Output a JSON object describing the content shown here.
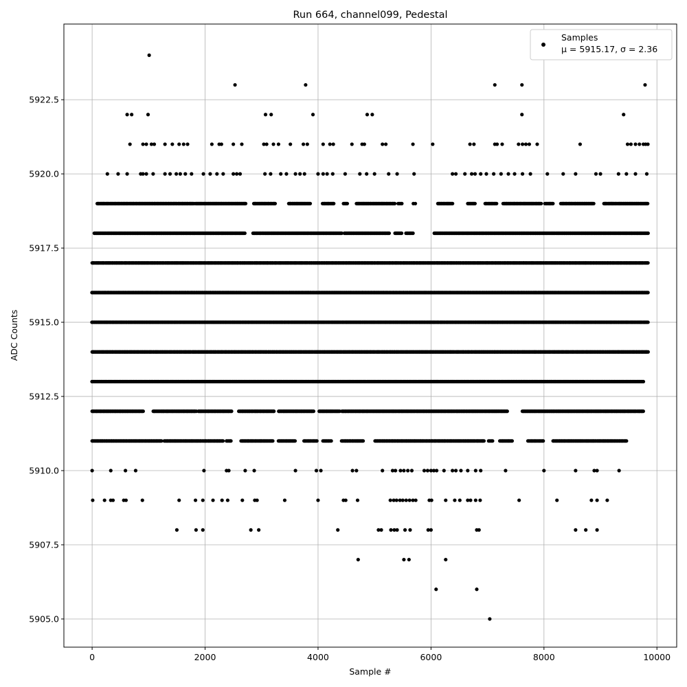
{
  "chart_data": {
    "type": "scatter",
    "title": "Run 664, channel099, Pedestal",
    "xlabel": "Sample #",
    "ylabel": "ADC Counts",
    "xlim": [
      -500,
      10350
    ],
    "ylim": [
      5904.05,
      5925.05
    ],
    "xticks": [
      0,
      2000,
      4000,
      6000,
      8000,
      10000
    ],
    "xtick_labels": [
      "0",
      "2000",
      "4000",
      "6000",
      "8000",
      "10000"
    ],
    "yticks": [
      5905.0,
      5907.5,
      5910.0,
      5912.5,
      5915.0,
      5917.5,
      5920.0,
      5922.5
    ],
    "ytick_labels": [
      "5905.0",
      "5907.5",
      "5910.0",
      "5912.5",
      "5915.0",
      "5917.5",
      "5920.0",
      "5922.5"
    ],
    "grid": true,
    "legend_position": "top-right",
    "series": [
      {
        "name": "Samples",
        "legend_label": "μ = 5915.17, σ = 2.36",
        "color": "#000000",
        "sample_count": 9830,
        "points": [
          [
            1010,
            5924
          ],
          [
            2530,
            5923
          ],
          [
            3780,
            5923
          ],
          [
            7130,
            5923
          ],
          [
            7610,
            5923
          ],
          [
            9790,
            5923
          ],
          [
            620,
            5922
          ],
          [
            700,
            5922
          ],
          [
            990,
            5922
          ],
          [
            3070,
            5922
          ],
          [
            3170,
            5922
          ],
          [
            3910,
            5922
          ],
          [
            4870,
            5922
          ],
          [
            4960,
            5922
          ],
          [
            7610,
            5922
          ],
          [
            9410,
            5922
          ],
          [
            7040,
            5905
          ],
          [
            6090,
            5906
          ],
          [
            6810,
            5906
          ],
          [
            4710,
            5907
          ],
          [
            5520,
            5907
          ],
          [
            5610,
            5907
          ],
          [
            6260,
            5907
          ],
          [
            1500,
            5908
          ],
          [
            1840,
            5908
          ],
          [
            1960,
            5908
          ],
          [
            2810,
            5908
          ],
          [
            2950,
            5908
          ],
          [
            4350,
            5908
          ],
          [
            5070,
            5908
          ],
          [
            5120,
            5908
          ],
          [
            5290,
            5908
          ],
          [
            5350,
            5908
          ],
          [
            5400,
            5908
          ],
          [
            5540,
            5908
          ],
          [
            5630,
            5908
          ],
          [
            5950,
            5908
          ],
          [
            6000,
            5908
          ],
          [
            6810,
            5908
          ],
          [
            6850,
            5908
          ],
          [
            8560,
            5908
          ],
          [
            8740,
            5908
          ],
          [
            8940,
            5908
          ],
          [
            10,
            5909
          ],
          [
            220,
            5909
          ],
          [
            330,
            5909
          ],
          [
            370,
            5909
          ],
          [
            560,
            5909
          ],
          [
            600,
            5909
          ],
          [
            890,
            5909
          ],
          [
            1540,
            5909
          ],
          [
            1830,
            5909
          ],
          [
            1960,
            5909
          ],
          [
            2140,
            5909
          ],
          [
            2300,
            5909
          ],
          [
            2400,
            5909
          ],
          [
            2660,
            5909
          ],
          [
            2880,
            5909
          ],
          [
            2920,
            5909
          ],
          [
            3410,
            5909
          ],
          [
            4000,
            5909
          ],
          [
            4450,
            5909
          ],
          [
            4490,
            5909
          ],
          [
            4700,
            5909
          ],
          [
            5280,
            5909
          ],
          [
            5340,
            5909
          ],
          [
            5390,
            5909
          ],
          [
            5450,
            5909
          ],
          [
            5500,
            5909
          ],
          [
            5560,
            5909
          ],
          [
            5620,
            5909
          ],
          [
            5680,
            5909
          ],
          [
            5730,
            5909
          ],
          [
            5970,
            5909
          ],
          [
            6010,
            5909
          ],
          [
            6260,
            5909
          ],
          [
            6420,
            5909
          ],
          [
            6510,
            5909
          ],
          [
            6650,
            5909
          ],
          [
            6700,
            5909
          ],
          [
            6790,
            5909
          ],
          [
            6870,
            5909
          ],
          [
            7560,
            5909
          ],
          [
            8230,
            5909
          ],
          [
            8840,
            5909
          ],
          [
            8940,
            5909
          ],
          [
            9120,
            5909
          ],
          [
            0,
            5910
          ],
          [
            330,
            5910
          ],
          [
            590,
            5910
          ],
          [
            770,
            5910
          ],
          [
            1980,
            5910
          ],
          [
            2380,
            5910
          ],
          [
            2420,
            5910
          ],
          [
            2710,
            5910
          ],
          [
            2870,
            5910
          ],
          [
            3600,
            5910
          ],
          [
            3970,
            5910
          ],
          [
            4050,
            5910
          ],
          [
            4610,
            5910
          ],
          [
            4680,
            5910
          ],
          [
            5140,
            5910
          ],
          [
            5320,
            5910
          ],
          [
            5370,
            5910
          ],
          [
            5460,
            5910
          ],
          [
            5520,
            5910
          ],
          [
            5590,
            5910
          ],
          [
            5660,
            5910
          ],
          [
            5880,
            5910
          ],
          [
            5940,
            5910
          ],
          [
            6000,
            5910
          ],
          [
            6050,
            5910
          ],
          [
            6100,
            5910
          ],
          [
            6230,
            5910
          ],
          [
            6380,
            5910
          ],
          [
            6440,
            5910
          ],
          [
            6530,
            5910
          ],
          [
            6650,
            5910
          ],
          [
            6790,
            5910
          ],
          [
            6880,
            5910
          ],
          [
            7320,
            5910
          ],
          [
            8000,
            5910
          ],
          [
            8560,
            5910
          ],
          [
            8890,
            5910
          ],
          [
            8940,
            5910
          ],
          [
            9330,
            5910
          ],
          [
            670,
            5921
          ],
          [
            900,
            5921
          ],
          [
            960,
            5921
          ],
          [
            1050,
            5921
          ],
          [
            1100,
            5921
          ],
          [
            1290,
            5921
          ],
          [
            1420,
            5921
          ],
          [
            1540,
            5921
          ],
          [
            1620,
            5921
          ],
          [
            1690,
            5921
          ],
          [
            2120,
            5921
          ],
          [
            2250,
            5921
          ],
          [
            2290,
            5921
          ],
          [
            2500,
            5921
          ],
          [
            2650,
            5921
          ],
          [
            3040,
            5921
          ],
          [
            3090,
            5921
          ],
          [
            3210,
            5921
          ],
          [
            3300,
            5921
          ],
          [
            3510,
            5921
          ],
          [
            3740,
            5921
          ],
          [
            3810,
            5921
          ],
          [
            4090,
            5921
          ],
          [
            4210,
            5921
          ],
          [
            4270,
            5921
          ],
          [
            4600,
            5921
          ],
          [
            4780,
            5921
          ],
          [
            4820,
            5921
          ],
          [
            5140,
            5921
          ],
          [
            5200,
            5921
          ],
          [
            5680,
            5921
          ],
          [
            6030,
            5921
          ],
          [
            6690,
            5921
          ],
          [
            6760,
            5921
          ],
          [
            7130,
            5921
          ],
          [
            7170,
            5921
          ],
          [
            7260,
            5921
          ],
          [
            7550,
            5921
          ],
          [
            7620,
            5921
          ],
          [
            7680,
            5921
          ],
          [
            7740,
            5921
          ],
          [
            7880,
            5921
          ],
          [
            8640,
            5921
          ],
          [
            9480,
            5921
          ],
          [
            9540,
            5921
          ],
          [
            9620,
            5921
          ],
          [
            9690,
            5921
          ],
          [
            9760,
            5921
          ],
          [
            9800,
            5921
          ],
          [
            9840,
            5921
          ],
          [
            270,
            5920
          ],
          [
            460,
            5920
          ],
          [
            620,
            5920
          ],
          [
            860,
            5920
          ],
          [
            900,
            5920
          ],
          [
            960,
            5920
          ],
          [
            1080,
            5920
          ],
          [
            1290,
            5920
          ],
          [
            1380,
            5920
          ],
          [
            1490,
            5920
          ],
          [
            1560,
            5920
          ],
          [
            1650,
            5920
          ],
          [
            1760,
            5920
          ],
          [
            1970,
            5920
          ],
          [
            2090,
            5920
          ],
          [
            2210,
            5920
          ],
          [
            2320,
            5920
          ],
          [
            2500,
            5920
          ],
          [
            2560,
            5920
          ],
          [
            2620,
            5920
          ],
          [
            3060,
            5920
          ],
          [
            3160,
            5920
          ],
          [
            3340,
            5920
          ],
          [
            3440,
            5920
          ],
          [
            3600,
            5920
          ],
          [
            3680,
            5920
          ],
          [
            3760,
            5920
          ],
          [
            4000,
            5920
          ],
          [
            4090,
            5920
          ],
          [
            4160,
            5920
          ],
          [
            4260,
            5920
          ],
          [
            4480,
            5920
          ],
          [
            4740,
            5920
          ],
          [
            4860,
            5920
          ],
          [
            5000,
            5920
          ],
          [
            5250,
            5920
          ],
          [
            5400,
            5920
          ],
          [
            5700,
            5920
          ],
          [
            6380,
            5920
          ],
          [
            6440,
            5920
          ],
          [
            6600,
            5920
          ],
          [
            6720,
            5920
          ],
          [
            6780,
            5920
          ],
          [
            6880,
            5920
          ],
          [
            6980,
            5920
          ],
          [
            7110,
            5920
          ],
          [
            7240,
            5920
          ],
          [
            7370,
            5920
          ],
          [
            7480,
            5920
          ],
          [
            7620,
            5920
          ],
          [
            7760,
            5920
          ],
          [
            8060,
            5920
          ],
          [
            8340,
            5920
          ],
          [
            8560,
            5920
          ],
          [
            8920,
            5920
          ],
          [
            9000,
            5920
          ],
          [
            9320,
            5920
          ],
          [
            9460,
            5920
          ],
          [
            9620,
            5920
          ],
          [
            9820,
            5920
          ]
        ],
        "dense_bands": [
          {
            "y": 5919,
            "x_ranges": [
              [
                90,
                1800
              ],
              [
                1830,
                2720
              ],
              [
                2860,
                3240
              ],
              [
                3480,
                3860
              ],
              [
                4080,
                4280
              ],
              [
                4450,
                4520
              ],
              [
                4680,
                5360
              ],
              [
                5420,
                5480
              ],
              [
                5690,
                5720
              ],
              [
                6120,
                6380
              ],
              [
                6650,
                6780
              ],
              [
                6960,
                7160
              ],
              [
                7280,
                7950
              ],
              [
                8020,
                8160
              ],
              [
                8300,
                8880
              ],
              [
                9060,
                9840
              ]
            ]
          },
          {
            "y": 5918,
            "x_ranges": [
              [
                40,
                1860
              ],
              [
                1880,
                2700
              ],
              [
                2850,
                4420
              ],
              [
                4470,
                5260
              ],
              [
                5360,
                5480
              ],
              [
                5560,
                5680
              ],
              [
                6060,
                9840
              ]
            ]
          },
          {
            "y": 5917,
            "x_ranges": [
              [
                0,
                9840
              ]
            ]
          },
          {
            "y": 5916,
            "x_ranges": [
              [
                0,
                9840
              ]
            ]
          },
          {
            "y": 5915,
            "x_ranges": [
              [
                0,
                9840
              ]
            ]
          },
          {
            "y": 5914,
            "x_ranges": [
              [
                0,
                9840
              ]
            ]
          },
          {
            "y": 5913,
            "x_ranges": [
              [
                0,
                9760
              ]
            ]
          },
          {
            "y": 5912,
            "x_ranges": [
              [
                0,
                900
              ],
              [
                1080,
                1840
              ],
              [
                1880,
                2470
              ],
              [
                2600,
                3220
              ],
              [
                3300,
                3920
              ],
              [
                4020,
                4380
              ],
              [
                4420,
                7350
              ],
              [
                7620,
                9760
              ]
            ]
          },
          {
            "y": 5911,
            "x_ranges": [
              [
                0,
                1230
              ],
              [
                1280,
                2320
              ],
              [
                2380,
                2460
              ],
              [
                2640,
                3200
              ],
              [
                3300,
                3590
              ],
              [
                3750,
                3980
              ],
              [
                4090,
                4230
              ],
              [
                4420,
                4800
              ],
              [
                5010,
                6940
              ],
              [
                7020,
                7090
              ],
              [
                7220,
                7440
              ],
              [
                7720,
                7990
              ],
              [
                8160,
                9460
              ]
            ]
          }
        ]
      }
    ]
  }
}
